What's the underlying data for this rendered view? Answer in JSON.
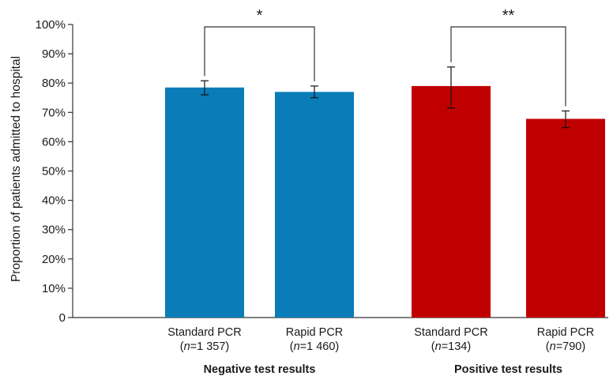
{
  "chart_data": {
    "type": "bar",
    "ylabel": "Proportion of patients admitted to hospital",
    "ylim": [
      0,
      100
    ],
    "yticks": [
      "0",
      "10%",
      "20%",
      "30%",
      "40%",
      "50%",
      "60%",
      "70%",
      "80%",
      "90%",
      "100%"
    ],
    "grid": false,
    "groups": [
      {
        "label": "Negative test results",
        "significance": "*",
        "bars": [
          {
            "label": "Standard PCR",
            "n_text": "(n=1 357)",
            "n_value": "1 357",
            "value": 78.5,
            "ci": [
              76.0,
              80.8
            ],
            "color": "#0a7db9"
          },
          {
            "label": "Rapid PCR",
            "n_text": "(n=1 460)",
            "n_value": "1 460",
            "value": 77.0,
            "ci": [
              75.0,
              79.0
            ],
            "color": "#0a7db9"
          }
        ]
      },
      {
        "label": "Positive test results",
        "significance": "**",
        "bars": [
          {
            "label": "Standard PCR",
            "n_text": "(n=134)",
            "n_value": "134",
            "value": 79.0,
            "ci": [
              71.5,
              85.5
            ],
            "color": "#c00000"
          },
          {
            "label": "Rapid PCR",
            "n_text": "(n=790)",
            "n_value": "790",
            "value": 67.8,
            "ci": [
              64.8,
              70.5
            ],
            "color": "#c00000"
          }
        ]
      }
    ]
  }
}
